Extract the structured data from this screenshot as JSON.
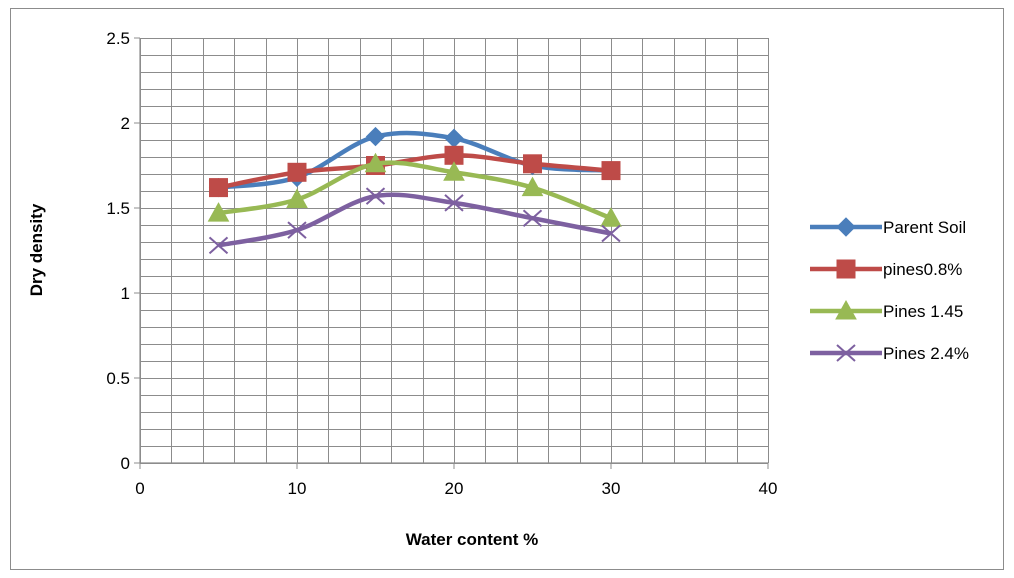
{
  "chart_data": {
    "type": "line",
    "xlabel": "Water content %",
    "ylabel": "Dry density",
    "xlim": [
      0,
      40
    ],
    "ylim": [
      0,
      2.5
    ],
    "xticks": [
      "0",
      "10",
      "20",
      "30",
      "40"
    ],
    "yticks": [
      "0",
      "0.5",
      "1",
      "1.5",
      "2",
      "2.5"
    ],
    "grid": true,
    "smooth": true,
    "legend_position": "right",
    "series": [
      {
        "name": "Parent Soil",
        "color": "#4a7ebb",
        "marker": "diamond",
        "x": [
          5,
          10,
          15,
          20,
          25,
          30
        ],
        "y": [
          1.62,
          1.68,
          1.92,
          1.91,
          1.75,
          1.72
        ]
      },
      {
        "name": "pines0.8%",
        "color": "#be4b48",
        "marker": "square",
        "x": [
          5,
          10,
          15,
          20,
          25,
          30
        ],
        "y": [
          1.62,
          1.71,
          1.75,
          1.81,
          1.76,
          1.72
        ]
      },
      {
        "name": "Pines 1.45",
        "color": "#98b954",
        "marker": "triangle",
        "x": [
          5,
          10,
          15,
          20,
          25,
          30
        ],
        "y": [
          1.47,
          1.55,
          1.76,
          1.71,
          1.62,
          1.44
        ]
      },
      {
        "name": "Pines 2.4%",
        "color": "#7d60a0",
        "marker": "x",
        "x": [
          5,
          10,
          15,
          20,
          25,
          30
        ],
        "y": [
          1.28,
          1.37,
          1.57,
          1.53,
          1.44,
          1.35
        ]
      }
    ]
  }
}
